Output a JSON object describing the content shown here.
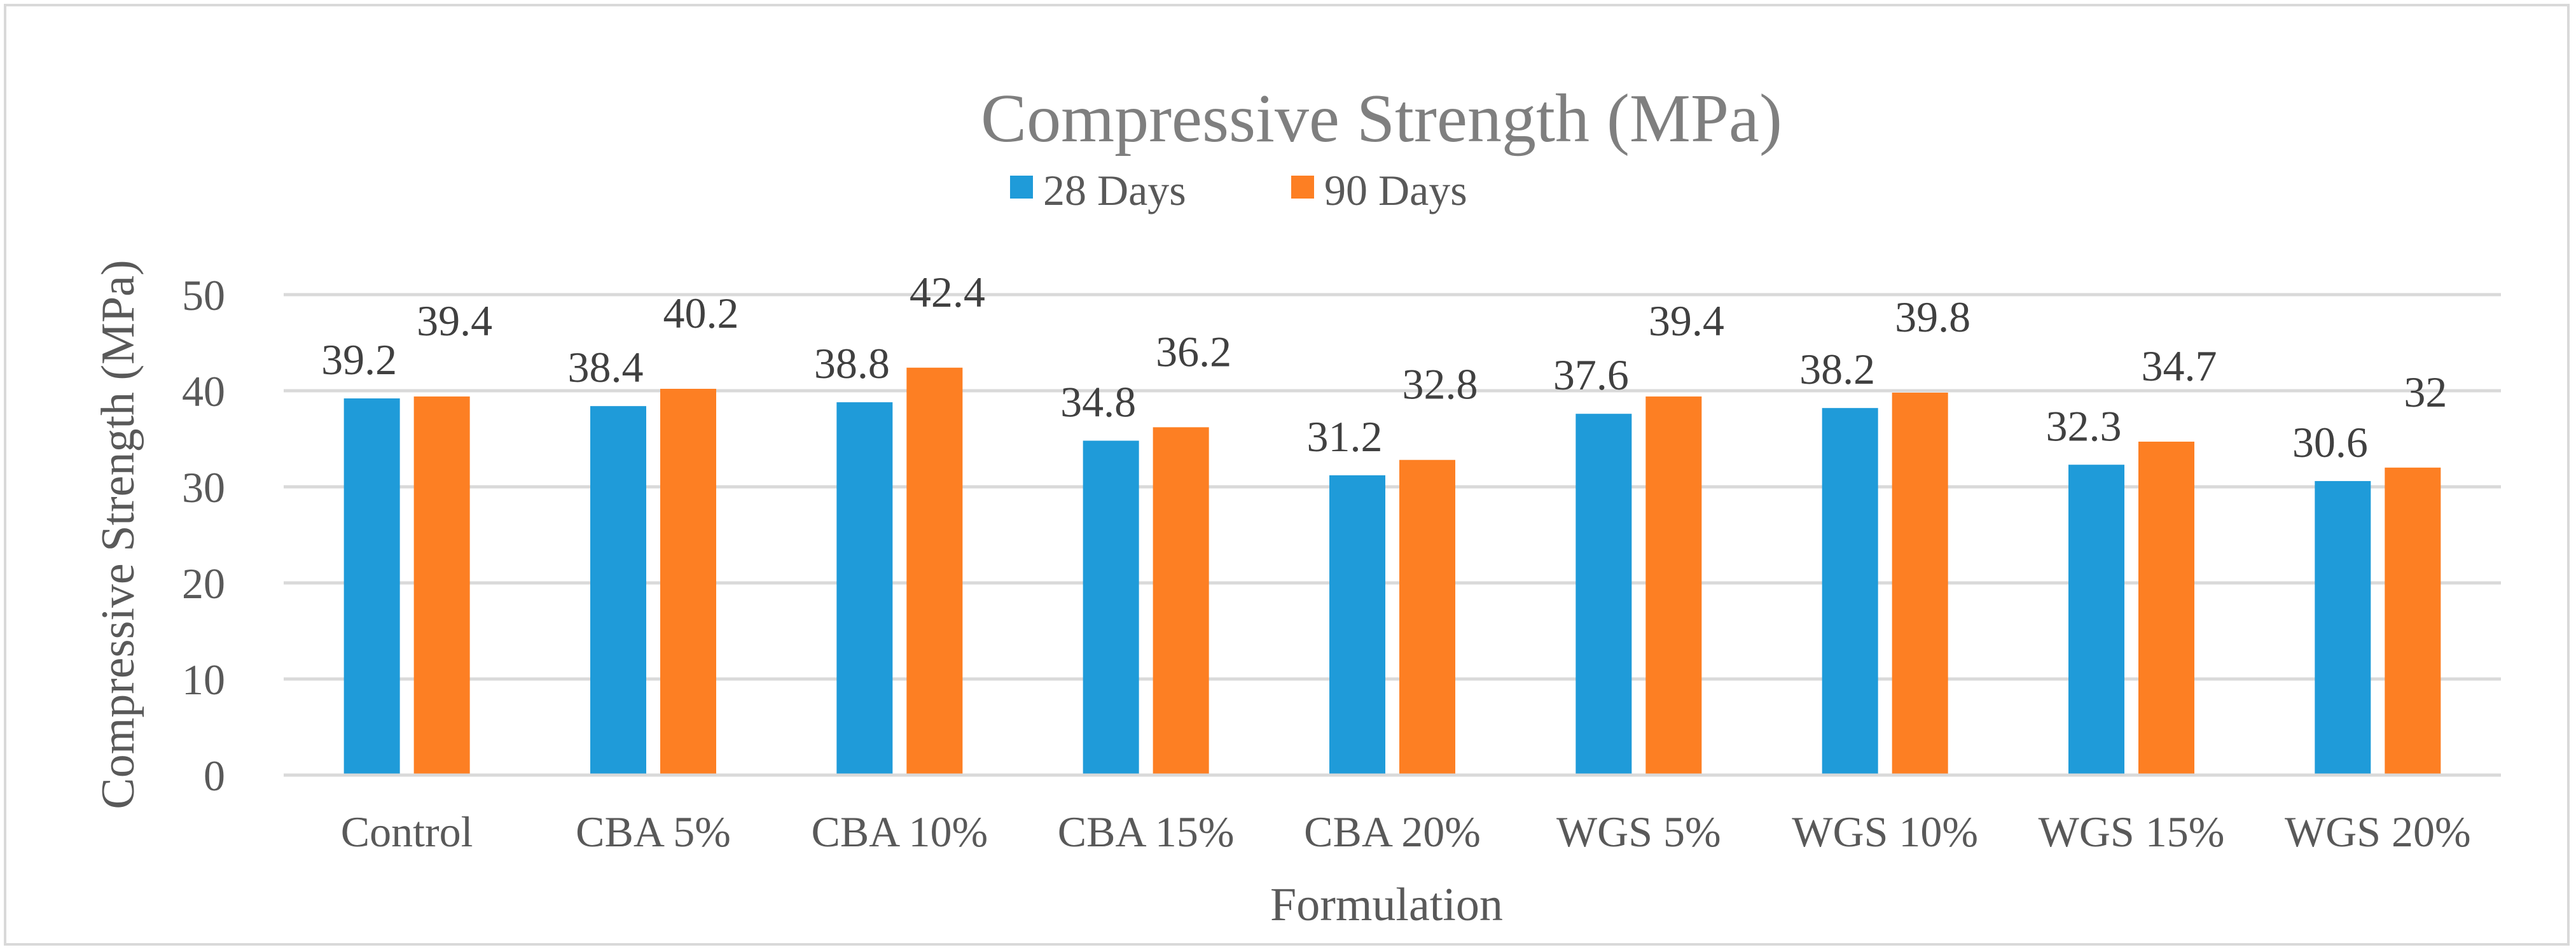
{
  "chart_data": {
    "type": "bar",
    "title": "Compressive Strength (MPa)",
    "xlabel": "Formulation",
    "ylabel": "Compressive Strength (MPa)",
    "ylim": [
      0,
      50
    ],
    "yticks": [
      0,
      10,
      20,
      30,
      40,
      50
    ],
    "ytick_labels": [
      "0",
      "10",
      "20",
      "30",
      "40",
      "50"
    ],
    "grid": true,
    "legend_position": "top-center",
    "categories": [
      "Control",
      "CBA 5%",
      "CBA 10%",
      "CBA 15%",
      "CBA 20%",
      "WGS 5%",
      "WGS 10%",
      "WGS 15%",
      "WGS 20%"
    ],
    "series": [
      {
        "name": "28 Days",
        "color": "#1f9bd9",
        "values": [
          39.2,
          38.4,
          38.8,
          34.8,
          31.2,
          37.6,
          38.2,
          32.3,
          30.6
        ],
        "labels": [
          "39.2",
          "38.4",
          "38.8",
          "34.8",
          "31.2",
          "37.6",
          "38.2",
          "32.3",
          "30.6"
        ]
      },
      {
        "name": "90 Days",
        "color": "#fd7f23",
        "values": [
          39.4,
          40.2,
          42.4,
          36.2,
          32.8,
          39.4,
          39.8,
          34.7,
          32
        ],
        "labels": [
          "39.4",
          "40.2",
          "42.4",
          "36.2",
          "32.8",
          "39.4",
          "39.8",
          "34.7",
          "32"
        ]
      }
    ]
  }
}
